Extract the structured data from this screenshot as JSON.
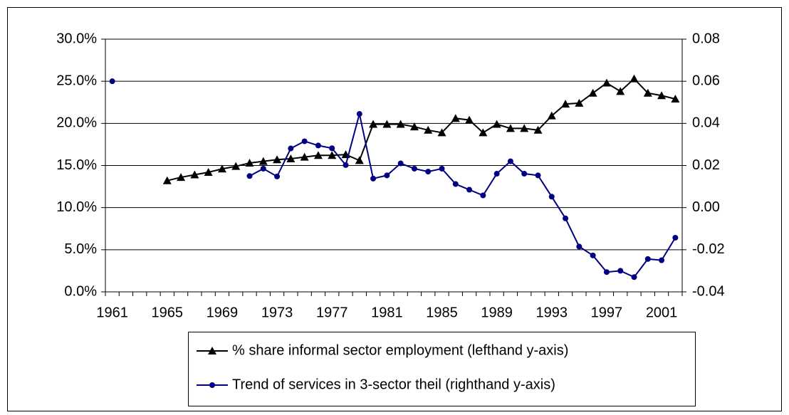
{
  "chart_data": {
    "type": "line",
    "categories": [
      "1961",
      null,
      null,
      null,
      "1965",
      null,
      null,
      null,
      "1969",
      null,
      null,
      null,
      "1973",
      null,
      null,
      null,
      "1977",
      null,
      null,
      null,
      "1981",
      null,
      null,
      null,
      "1985",
      null,
      null,
      null,
      "1989",
      null,
      null,
      null,
      "1993",
      null,
      null,
      null,
      "1997",
      null,
      null,
      null,
      "2001",
      null
    ],
    "series": [
      {
        "name": "% share informal sector employment (lefthand y-axis)",
        "color": "#000000",
        "marker": "triangle",
        "axis": "y",
        "values": [
          null,
          null,
          null,
          null,
          13.2,
          13.6,
          13.9,
          14.2,
          14.6,
          14.9,
          15.3,
          15.5,
          15.7,
          15.8,
          16.0,
          16.2,
          16.2,
          16.3,
          15.6,
          19.9,
          19.9,
          19.9,
          19.6,
          19.2,
          18.9,
          20.6,
          20.4,
          18.9,
          19.9,
          19.4,
          19.4,
          19.2,
          20.9,
          22.3,
          22.4,
          23.6,
          24.8,
          23.8,
          25.3,
          23.6,
          23.3,
          22.9
        ]
      },
      {
        "name": "Trend of services in 3-sector theil (righthand y-axis)",
        "color": "#000080",
        "marker": "circle",
        "axis": "y2",
        "values": [
          0.06,
          null,
          null,
          null,
          null,
          null,
          null,
          null,
          null,
          null,
          0.015,
          0.0185,
          0.0148,
          0.0281,
          0.0315,
          0.0295,
          0.0282,
          0.0202,
          0.0445,
          0.0138,
          0.0153,
          0.021,
          0.0185,
          0.0171,
          0.0185,
          0.0112,
          0.0085,
          0.0058,
          0.0161,
          0.022,
          0.0161,
          0.0153,
          0.0052,
          -0.0051,
          -0.0185,
          -0.0227,
          -0.0306,
          -0.03,
          -0.033,
          -0.0244,
          -0.025,
          -0.0143
        ]
      }
    ],
    "ylim": [
      0,
      30
    ],
    "yticks": [
      {
        "value": 0,
        "label": "0.0%"
      },
      {
        "value": 5,
        "label": "5.0%"
      },
      {
        "value": 10,
        "label": "10.0%"
      },
      {
        "value": 15,
        "label": "15.0%"
      },
      {
        "value": 20,
        "label": "20.0%"
      },
      {
        "value": 25,
        "label": "25.0%"
      },
      {
        "value": 30,
        "label": "30.0%"
      }
    ],
    "y2lim": [
      -0.04,
      0.08
    ],
    "y2ticks": [
      -0.04,
      -0.02,
      {
        "value": 0,
        "label": "0.00"
      },
      0.02,
      0.04,
      0.06,
      0.08
    ],
    "grid": true,
    "legend": "bottom"
  }
}
